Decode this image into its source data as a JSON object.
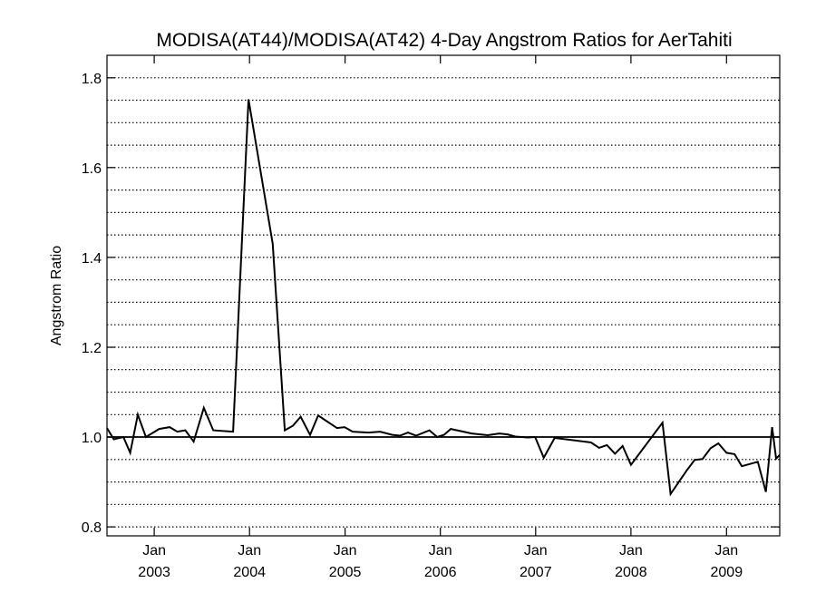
{
  "chart_data": {
    "type": "line",
    "title": "MODISA(AT44)/MODISA(AT42) 4-Day Angstrom Ratios for AerTahiti",
    "xlabel": "",
    "ylabel": "Angstrom Ratio",
    "ylim": [
      0.78,
      1.85
    ],
    "yticks": [
      0.8,
      1.0,
      1.2,
      1.4,
      1.6,
      1.8
    ],
    "ytick_labels": [
      "0.8",
      "1.0",
      "1.2",
      "1.4",
      "1.6",
      "1.8"
    ],
    "xlim": [
      "2002-07-04",
      "2009-07-24"
    ],
    "xticks": [
      {
        "date": "2003-01-01",
        "month": "Jan",
        "year": "2003"
      },
      {
        "date": "2004-01-01",
        "month": "Jan",
        "year": "2004"
      },
      {
        "date": "2005-01-01",
        "month": "Jan",
        "year": "2005"
      },
      {
        "date": "2006-01-01",
        "month": "Jan",
        "year": "2006"
      },
      {
        "date": "2007-01-01",
        "month": "Jan",
        "year": "2007"
      },
      {
        "date": "2008-01-01",
        "month": "Jan",
        "year": "2008"
      },
      {
        "date": "2009-01-01",
        "month": "Jan",
        "year": "2009"
      }
    ],
    "grid": "horizontal dotted",
    "reference_line": 1.0,
    "series": [
      {
        "points": [
          [
            "2002-07-04",
            1.02
          ],
          [
            "2002-07-30",
            0.995
          ],
          [
            "2002-09-05",
            1.0
          ],
          [
            "2002-10-01",
            0.965
          ],
          [
            "2002-10-30",
            1.05
          ],
          [
            "2002-11-30",
            1.0
          ],
          [
            "2003-01-20",
            1.018
          ],
          [
            "2003-03-01",
            1.022
          ],
          [
            "2003-03-30",
            1.012
          ],
          [
            "2003-04-30",
            1.015
          ],
          [
            "2003-06-01",
            0.99
          ],
          [
            "2003-07-10",
            1.065
          ],
          [
            "2003-08-15",
            1.015
          ],
          [
            "2003-10-30",
            1.012
          ],
          [
            "2003-12-28",
            1.752
          ],
          [
            "2004-03-30",
            1.43
          ],
          [
            "2004-05-15",
            1.015
          ],
          [
            "2004-06-15",
            1.025
          ],
          [
            "2004-07-15",
            1.045
          ],
          [
            "2004-08-20",
            1.005
          ],
          [
            "2004-09-20",
            1.048
          ],
          [
            "2004-12-01",
            1.02
          ],
          [
            "2004-12-30",
            1.022
          ],
          [
            "2005-01-30",
            1.012
          ],
          [
            "2005-04-01",
            1.01
          ],
          [
            "2005-05-15",
            1.012
          ],
          [
            "2005-07-01",
            1.005
          ],
          [
            "2005-07-30",
            1.003
          ],
          [
            "2005-08-30",
            1.01
          ],
          [
            "2005-09-30",
            1.003
          ],
          [
            "2005-11-20",
            1.015
          ],
          [
            "2005-12-20",
            1.0
          ],
          [
            "2006-01-15",
            1.005
          ],
          [
            "2006-02-10",
            1.018
          ],
          [
            "2006-05-01",
            1.008
          ],
          [
            "2006-07-01",
            1.004
          ],
          [
            "2006-08-15",
            1.008
          ],
          [
            "2006-09-15",
            1.006
          ],
          [
            "2006-10-15",
            1.001
          ],
          [
            "2006-12-01",
            0.999
          ],
          [
            "2006-12-30",
            1.0
          ],
          [
            "2007-02-01",
            0.954
          ],
          [
            "2007-03-15",
            0.998
          ],
          [
            "2007-08-01",
            0.988
          ],
          [
            "2007-09-01",
            0.976
          ],
          [
            "2007-10-01",
            0.982
          ],
          [
            "2007-11-01",
            0.963
          ],
          [
            "2007-11-30",
            0.98
          ],
          [
            "2008-01-01",
            0.938
          ],
          [
            "2008-05-01",
            1.032
          ],
          [
            "2008-06-01",
            0.873
          ],
          [
            "2008-08-01",
            0.925
          ],
          [
            "2008-09-01",
            0.949
          ],
          [
            "2008-10-01",
            0.951
          ],
          [
            "2008-11-01",
            0.975
          ],
          [
            "2008-12-01",
            0.986
          ],
          [
            "2009-01-01",
            0.965
          ],
          [
            "2009-02-01",
            0.962
          ],
          [
            "2009-03-01",
            0.935
          ],
          [
            "2009-05-01",
            0.945
          ],
          [
            "2009-06-01",
            0.878
          ],
          [
            "2009-06-25",
            1.022
          ],
          [
            "2009-07-10",
            0.952
          ],
          [
            "2009-07-24",
            0.96
          ]
        ]
      }
    ]
  }
}
